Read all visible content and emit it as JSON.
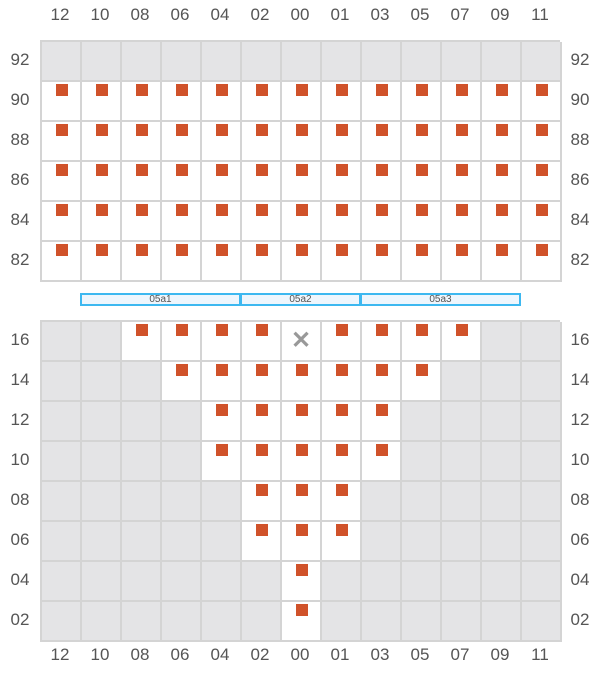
{
  "columns": [
    "12",
    "10",
    "08",
    "06",
    "04",
    "02",
    "00",
    "01",
    "03",
    "05",
    "07",
    "09",
    "11"
  ],
  "colors": {
    "seat": "#d0522a",
    "blocked": "#e4e4e6",
    "zone_border": "#3db8f0"
  },
  "legend_codes": {
    "S": "seat-available",
    "E": "empty",
    "B": "blocked",
    "X": "unavailable"
  },
  "top_section": {
    "rows": [
      {
        "label": "92",
        "cells": "BBBBBBBBBBBBB"
      },
      {
        "label": "90",
        "cells": "SSSSSSSSSSSSS"
      },
      {
        "label": "88",
        "cells": "SSSSSSSSSSSSS"
      },
      {
        "label": "86",
        "cells": "SSSSSSSSSSSSS"
      },
      {
        "label": "84",
        "cells": "SSSSSSSSSSSSS"
      },
      {
        "label": "82",
        "cells": "SSSSSSSSSSSSS"
      }
    ]
  },
  "zones": [
    {
      "label": "05a1",
      "from_col": 1,
      "to_col": 4
    },
    {
      "label": "05a2",
      "from_col": 5,
      "to_col": 7
    },
    {
      "label": "05a3",
      "from_col": 8,
      "to_col": 11
    }
  ],
  "bottom_section": {
    "rows": [
      {
        "label": "16",
        "cells": "BBSSSSXSSSSBB"
      },
      {
        "label": "14",
        "cells": "BBBSSSSSSSBBB"
      },
      {
        "label": "12",
        "cells": "BBBBSSSSSBBBB"
      },
      {
        "label": "10",
        "cells": "BBBBSSSSSBBBB"
      },
      {
        "label": "08",
        "cells": "BBBBBSSSBBBBB"
      },
      {
        "label": "06",
        "cells": "BBBBBSSSBBBBB"
      },
      {
        "label": "04",
        "cells": "BBBBBBSBBBBBB"
      },
      {
        "label": "02",
        "cells": "BBBBBBSBBBBBB"
      }
    ]
  },
  "x_glyph": "✕"
}
